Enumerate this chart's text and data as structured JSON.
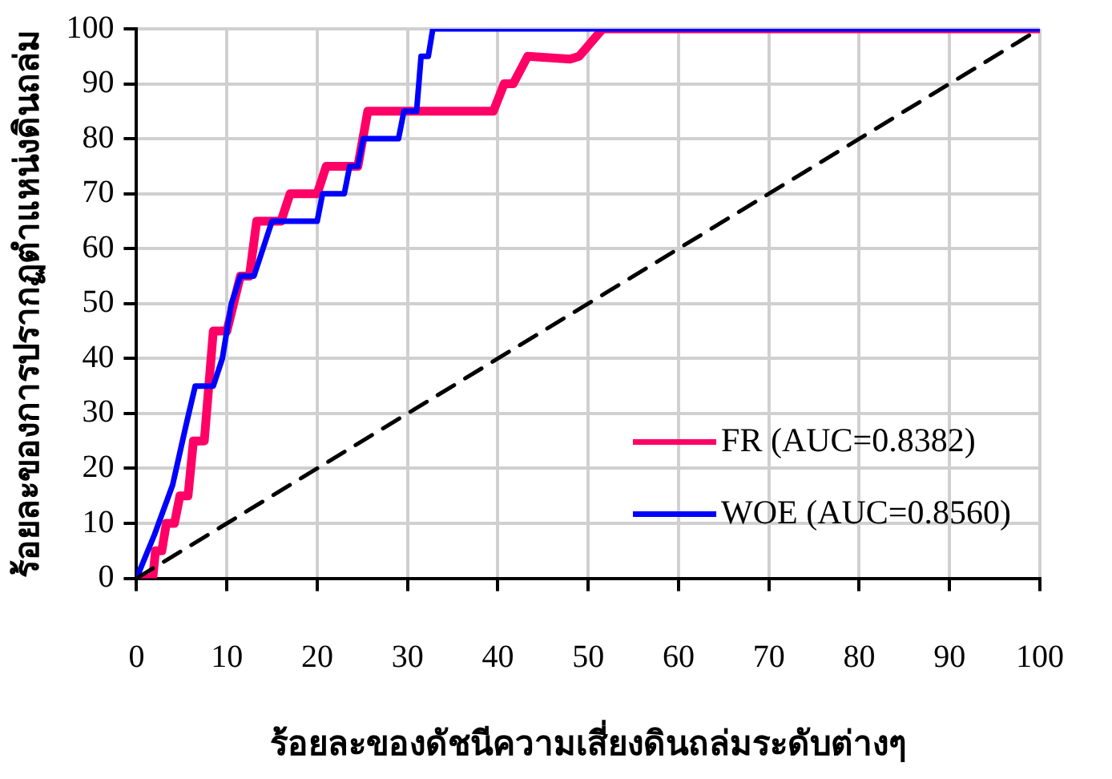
{
  "chart_data": {
    "type": "line",
    "xlabel": "ร้อยละของดัชนีความเสี่ยงดินถล่มระดับต่างๆ",
    "ylabel": "ร้อยละของการปรากฏตำแหน่งดินถล่ม",
    "xlim": [
      0,
      100
    ],
    "ylim": [
      0,
      100
    ],
    "xticks": [
      0,
      10,
      20,
      30,
      40,
      50,
      60,
      70,
      80,
      90,
      100
    ],
    "yticks": [
      0,
      10,
      20,
      30,
      40,
      50,
      60,
      70,
      80,
      90,
      100
    ],
    "grid": true,
    "legend": "bottom right",
    "marker": "none",
    "series": [
      {
        "name": "FR (AUC=0.8382)",
        "color": "#ff0066",
        "x": [
          0,
          1.8,
          2.1,
          2.8,
          3.3,
          4.2,
          4.8,
          5.7,
          6.3,
          7.5,
          8.5,
          10,
          11.5,
          12.5,
          13.3,
          16,
          17,
          20,
          21,
          23.5,
          24.5,
          25.6,
          39.5,
          40.7,
          41.7,
          43.3,
          48,
          49,
          51.6,
          100
        ],
        "values": [
          0,
          0,
          5,
          5,
          10,
          10,
          15,
          15,
          25,
          25,
          45,
          45,
          55,
          55,
          65,
          65,
          70,
          70,
          75,
          75,
          75,
          85,
          85,
          90,
          90,
          95,
          94.5,
          95,
          100,
          100
        ]
      },
      {
        "name": "WOE (AUC=0.8560)",
        "color": "#0000ff",
        "x": [
          0,
          2,
          4,
          5.5,
          6.5,
          8.5,
          9.5,
          10.5,
          11.5,
          13,
          14,
          15,
          20,
          20.6,
          23,
          23.6,
          24.5,
          25.1,
          29,
          29.6,
          31,
          31.5,
          32.3,
          32.8,
          100
        ],
        "values": [
          0,
          8,
          17,
          28,
          35,
          35,
          40,
          50,
          55,
          55,
          60,
          65,
          65,
          70,
          70,
          75,
          75,
          80,
          80,
          85,
          85,
          95,
          95,
          100,
          100
        ]
      },
      {
        "color": "#000000",
        "line_style": "dashed",
        "x": [
          0,
          100
        ],
        "values": [
          0,
          100
        ]
      }
    ]
  }
}
